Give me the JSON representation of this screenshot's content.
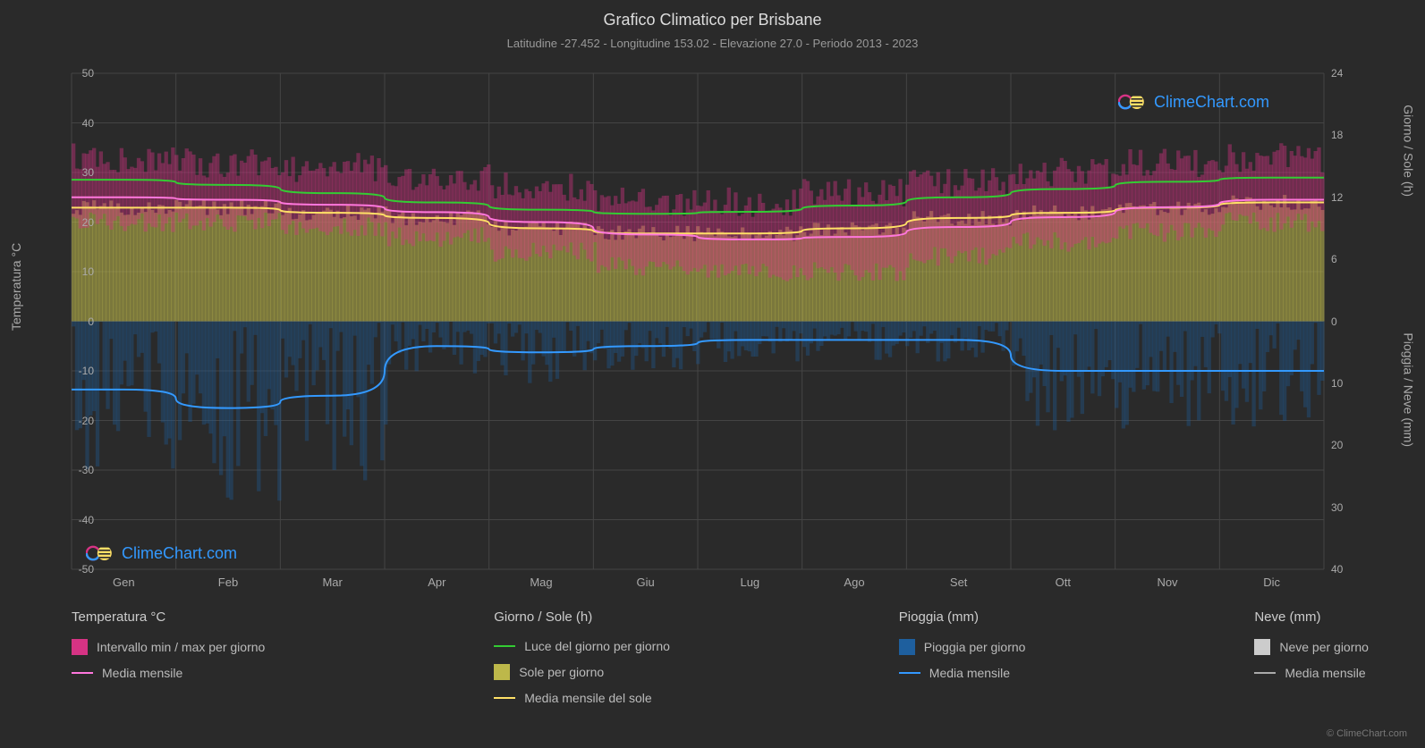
{
  "title": "Grafico Climatico per Brisbane",
  "subtitle": "Latitudine -27.452 - Longitudine 153.02 - Elevazione 27.0 - Periodo 2013 - 2023",
  "axis_left_title": "Temperatura °C",
  "axis_right_top_title": "Giorno / Sole (h)",
  "axis_right_bottom_title": "Pioggia / Neve (mm)",
  "months": [
    "Gen",
    "Feb",
    "Mar",
    "Apr",
    "Mag",
    "Giu",
    "Lug",
    "Ago",
    "Set",
    "Ott",
    "Nov",
    "Dic"
  ],
  "temp_axis": {
    "min": -50,
    "max": 50,
    "ticks": [
      -50,
      -40,
      -30,
      -20,
      -10,
      0,
      10,
      20,
      30,
      40,
      50
    ]
  },
  "hours_axis": {
    "min": 0,
    "max": 24,
    "ticks": [
      0,
      6,
      12,
      18,
      24
    ]
  },
  "precip_axis": {
    "min": 0,
    "max": 40,
    "ticks": [
      0,
      10,
      20,
      30,
      40
    ]
  },
  "colors": {
    "background": "#2a2a2a",
    "grid": "#444444",
    "temp_range_fill": "#d63384",
    "temp_range_fill_opacity": 0.4,
    "temp_mean_line": "#ff77dd",
    "daylight_line": "#33cc33",
    "sun_fill": "#bdb84a",
    "sun_fill_opacity": 0.55,
    "sun_mean_line": "#ffe066",
    "rain_fill": "#1e5f9e",
    "rain_fill_opacity": 0.35,
    "rain_mean_line": "#3399ff",
    "snow_fill": "#cccccc",
    "snow_mean_line": "#aaaaaa",
    "watermark_text": "#3399ff"
  },
  "series": {
    "temp_mean": [
      25,
      24.5,
      23.5,
      22,
      20,
      17.5,
      16.5,
      17,
      19,
      21,
      23,
      24.5
    ],
    "temp_min_band": [
      20,
      20,
      19,
      17,
      14,
      11,
      10,
      10,
      13,
      16,
      18,
      20
    ],
    "temp_max_band": [
      33,
      32,
      31,
      29,
      27,
      24,
      24,
      26,
      28,
      30,
      32,
      33
    ],
    "daylight_hours": [
      13.7,
      13.2,
      12.4,
      11.5,
      10.8,
      10.4,
      10.6,
      11.2,
      12.0,
      12.8,
      13.5,
      13.9
    ],
    "sun_hours": [
      11,
      11,
      10.5,
      10,
      9,
      8.5,
      8.5,
      9,
      10,
      10.5,
      11,
      11.5
    ],
    "rain_mean_mm": [
      11,
      14,
      12,
      4,
      5,
      4,
      3,
      3,
      3,
      8,
      8,
      8
    ]
  },
  "legend": {
    "col1": {
      "header": "Temperatura °C",
      "items": [
        {
          "swatch_type": "box",
          "color": "#d63384",
          "label": "Intervallo min / max per giorno"
        },
        {
          "swatch_type": "line",
          "color": "#ff77dd",
          "label": "Media mensile"
        }
      ]
    },
    "col2": {
      "header": "Giorno / Sole (h)",
      "items": [
        {
          "swatch_type": "line",
          "color": "#33cc33",
          "label": "Luce del giorno per giorno"
        },
        {
          "swatch_type": "box",
          "color": "#bdb84a",
          "label": "Sole per giorno"
        },
        {
          "swatch_type": "line",
          "color": "#ffe066",
          "label": "Media mensile del sole"
        }
      ]
    },
    "col3": {
      "header": "Pioggia (mm)",
      "items": [
        {
          "swatch_type": "box",
          "color": "#1e5f9e",
          "label": "Pioggia per giorno"
        },
        {
          "swatch_type": "line",
          "color": "#3399ff",
          "label": "Media mensile"
        }
      ]
    },
    "col4": {
      "header": "Neve (mm)",
      "items": [
        {
          "swatch_type": "box",
          "color": "#cccccc",
          "label": "Neve per giorno"
        },
        {
          "swatch_type": "line",
          "color": "#aaaaaa",
          "label": "Media mensile"
        }
      ]
    }
  },
  "watermark": "ClimeChart.com",
  "copyright": "© ClimeChart.com"
}
